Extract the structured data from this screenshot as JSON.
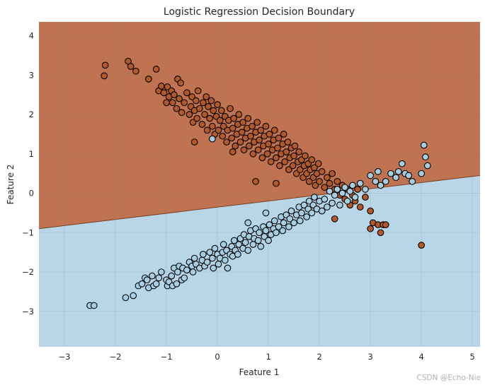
{
  "chart_data": {
    "type": "scatter",
    "title": "Logistic Regression Decision Boundary",
    "xlabel": "Feature 1",
    "ylabel": "Feature 2",
    "xlim": [
      -3.5,
      5.15
    ],
    "ylim": [
      -3.9,
      4.35
    ],
    "x_ticks": [
      -3,
      -2,
      -1,
      0,
      1,
      2,
      3,
      4,
      5
    ],
    "y_ticks": [
      -3,
      -2,
      -1,
      0,
      1,
      2,
      3,
      4
    ],
    "x_tick_labels": [
      "−3",
      "−2",
      "−1",
      "0",
      "1",
      "2",
      "3",
      "4",
      "5"
    ],
    "y_tick_labels": [
      "−3",
      "−2",
      "−1",
      "0",
      "1",
      "2",
      "3",
      "4"
    ],
    "grid": true,
    "decision_boundary": {
      "points": [
        [
          -3.5,
          -0.9
        ],
        [
          5.15,
          0.45
        ]
      ],
      "region_above_color": "#c07351",
      "region_below_color": "#b8d6e8"
    },
    "class_colors": {
      "class_0": "#a6cee3",
      "class_1": "#b15928"
    },
    "class_0_points": [
      [
        -2.5,
        -2.85
      ],
      [
        -2.42,
        -2.85
      ],
      [
        -1.8,
        -2.65
      ],
      [
        -1.65,
        -2.6
      ],
      [
        -1.55,
        -2.35
      ],
      [
        -1.48,
        -2.3
      ],
      [
        -1.42,
        -2.15
      ],
      [
        -1.38,
        -2.2
      ],
      [
        -1.35,
        -2.4
      ],
      [
        -1.28,
        -2.1
      ],
      [
        -1.25,
        -2.35
      ],
      [
        -1.2,
        -2.3
      ],
      [
        -1.15,
        -2.15
      ],
      [
        -1.1,
        -2.0
      ],
      [
        -1.0,
        -2.2
      ],
      [
        -0.98,
        -2.35
      ],
      [
        -0.95,
        -2.25
      ],
      [
        -0.9,
        -2.1
      ],
      [
        -0.88,
        -2.35
      ],
      [
        -0.85,
        -1.9
      ],
      [
        -0.8,
        -2.3
      ],
      [
        -0.78,
        -2.0
      ],
      [
        -0.75,
        -1.85
      ],
      [
        -0.7,
        -2.2
      ],
      [
        -0.68,
        -1.9
      ],
      [
        -0.65,
        -2.15
      ],
      [
        -0.6,
        -1.95
      ],
      [
        -0.55,
        -1.75
      ],
      [
        -0.5,
        -1.85
      ],
      [
        -0.48,
        -2.0
      ],
      [
        -0.45,
        -1.65
      ],
      [
        -0.42,
        -1.8
      ],
      [
        -0.35,
        -1.9
      ],
      [
        -0.3,
        -1.7
      ],
      [
        -0.28,
        -1.55
      ],
      [
        -0.25,
        -1.85
      ],
      [
        -0.2,
        -1.75
      ],
      [
        -0.15,
        -1.5
      ],
      [
        -0.1,
        -1.65
      ],
      [
        -0.08,
        -1.9
      ],
      [
        -0.05,
        -1.4
      ],
      [
        0.0,
        -1.55
      ],
      [
        0.02,
        -1.8
      ],
      [
        0.05,
        -1.65
      ],
      [
        0.1,
        -1.5
      ],
      [
        0.12,
        -1.3
      ],
      [
        0.15,
        -1.7
      ],
      [
        0.18,
        -1.45
      ],
      [
        0.2,
        -1.9
      ],
      [
        0.25,
        -1.55
      ],
      [
        0.28,
        -1.35
      ],
      [
        0.3,
        -1.6
      ],
      [
        0.33,
        -1.2
      ],
      [
        0.35,
        -1.45
      ],
      [
        0.4,
        -1.55
      ],
      [
        0.42,
        -1.3
      ],
      [
        0.45,
        -1.15
      ],
      [
        0.5,
        -1.4
      ],
      [
        0.52,
        -1.05
      ],
      [
        0.55,
        -1.25
      ],
      [
        0.6,
        -1.45
      ],
      [
        0.62,
        -1.1
      ],
      [
        0.65,
        -0.95
      ],
      [
        0.7,
        -1.3
      ],
      [
        0.72,
        -1.15
      ],
      [
        0.75,
        -0.9
      ],
      [
        0.8,
        -1.2
      ],
      [
        0.82,
        -1.0
      ],
      [
        0.85,
        -1.35
      ],
      [
        0.9,
        -0.85
      ],
      [
        0.92,
        -1.1
      ],
      [
        0.95,
        -0.95
      ],
      [
        1.0,
        -1.2
      ],
      [
        1.02,
        -0.8
      ],
      [
        1.05,
        -1.05
      ],
      [
        1.1,
        -0.9
      ],
      [
        1.12,
        -0.7
      ],
      [
        1.15,
        -1.0
      ],
      [
        1.2,
        -0.85
      ],
      [
        1.25,
        -0.6
      ],
      [
        1.28,
        -0.95
      ],
      [
        1.3,
        -0.75
      ],
      [
        1.35,
        -0.55
      ],
      [
        1.4,
        -0.85
      ],
      [
        1.42,
        -0.65
      ],
      [
        1.45,
        -0.45
      ],
      [
        1.5,
        -0.75
      ],
      [
        1.55,
        -0.55
      ],
      [
        1.6,
        -0.35
      ],
      [
        1.62,
        -0.7
      ],
      [
        1.65,
        -0.5
      ],
      [
        1.7,
        -0.3
      ],
      [
        1.75,
        -0.6
      ],
      [
        1.78,
        -0.4
      ],
      [
        1.8,
        -0.2
      ],
      [
        1.85,
        -0.5
      ],
      [
        1.88,
        -0.3
      ],
      [
        1.9,
        -0.1
      ],
      [
        1.95,
        -0.4
      ],
      [
        2.0,
        -0.2
      ],
      [
        2.05,
        -0.45
      ],
      [
        2.1,
        -0.15
      ],
      [
        2.15,
        -0.35
      ],
      [
        2.2,
        0.05
      ],
      [
        2.25,
        -0.25
      ],
      [
        2.3,
        -0.05
      ],
      [
        2.35,
        0.1
      ],
      [
        2.4,
        -0.3
      ],
      [
        2.45,
        0.0
      ],
      [
        2.5,
        0.15
      ],
      [
        2.55,
        -0.2
      ],
      [
        2.6,
        0.05
      ],
      [
        2.65,
        0.2
      ],
      [
        2.7,
        -0.1
      ],
      [
        2.8,
        0.25
      ],
      [
        2.9,
        0.1
      ],
      [
        3.0,
        0.45
      ],
      [
        3.1,
        0.3
      ],
      [
        3.15,
        0.55
      ],
      [
        3.2,
        0.2
      ],
      [
        3.3,
        0.3
      ],
      [
        3.4,
        0.5
      ],
      [
        3.5,
        0.4
      ],
      [
        3.55,
        0.55
      ],
      [
        3.62,
        0.75
      ],
      [
        3.68,
        0.5
      ],
      [
        3.75,
        0.45
      ],
      [
        3.82,
        0.3
      ],
      [
        4.0,
        0.5
      ],
      [
        4.05,
        1.22
      ],
      [
        4.08,
        0.92
      ],
      [
        4.12,
        0.7
      ],
      [
        -0.1,
        1.38
      ],
      [
        0.95,
        -0.5
      ],
      [
        0.6,
        -0.75
      ]
    ],
    "class_1_points": [
      [
        -2.2,
        3.25
      ],
      [
        -2.22,
        2.98
      ],
      [
        -1.75,
        3.35
      ],
      [
        -1.7,
        3.22
      ],
      [
        -1.6,
        3.1
      ],
      [
        -1.35,
        2.9
      ],
      [
        -1.2,
        3.15
      ],
      [
        -1.15,
        2.6
      ],
      [
        -1.1,
        2.72
      ],
      [
        -1.05,
        2.55
      ],
      [
        -1.0,
        2.3
      ],
      [
        -0.98,
        2.7
      ],
      [
        -0.95,
        2.45
      ],
      [
        -0.9,
        2.6
      ],
      [
        -0.88,
        2.3
      ],
      [
        -0.85,
        2.5
      ],
      [
        -0.8,
        2.15
      ],
      [
        -0.78,
        2.9
      ],
      [
        -0.75,
        2.4
      ],
      [
        -0.72,
        2.8
      ],
      [
        -0.7,
        2.05
      ],
      [
        -0.65,
        2.3
      ],
      [
        -0.6,
        2.55
      ],
      [
        -0.55,
        2.0
      ],
      [
        -0.52,
        2.2
      ],
      [
        -0.5,
        2.45
      ],
      [
        -0.48,
        1.8
      ],
      [
        -0.45,
        2.1
      ],
      [
        -0.42,
        2.35
      ],
      [
        -0.4,
        1.9
      ],
      [
        -0.38,
        2.6
      ],
      [
        -0.35,
        2.15
      ],
      [
        -0.3,
        1.75
      ],
      [
        -0.28,
        2.3
      ],
      [
        -0.25,
        2.0
      ],
      [
        -0.22,
        2.45
      ],
      [
        -0.2,
        1.6
      ],
      [
        -0.18,
        2.2
      ],
      [
        -0.15,
        1.9
      ],
      [
        -0.12,
        2.35
      ],
      [
        -0.1,
        1.7
      ],
      [
        -0.08,
        2.1
      ],
      [
        -0.05,
        1.5
      ],
      [
        -0.02,
        1.95
      ],
      [
        0.0,
        2.25
      ],
      [
        0.02,
        1.6
      ],
      [
        0.05,
        1.85
      ],
      [
        0.08,
        2.1
      ],
      [
        0.1,
        1.45
      ],
      [
        0.12,
        1.7
      ],
      [
        0.15,
        1.95
      ],
      [
        0.18,
        1.3
      ],
      [
        0.2,
        1.6
      ],
      [
        0.22,
        1.85
      ],
      [
        0.25,
        2.15
      ],
      [
        0.28,
        1.4
      ],
      [
        0.3,
        1.65
      ],
      [
        0.32,
        1.9
      ],
      [
        0.35,
        1.2
      ],
      [
        0.38,
        1.5
      ],
      [
        0.4,
        1.75
      ],
      [
        0.42,
        2.0
      ],
      [
        0.45,
        1.3
      ],
      [
        0.48,
        1.55
      ],
      [
        0.5,
        1.8
      ],
      [
        0.52,
        1.1
      ],
      [
        0.55,
        1.4
      ],
      [
        0.58,
        1.65
      ],
      [
        0.6,
        1.9
      ],
      [
        0.62,
        1.2
      ],
      [
        0.65,
        1.45
      ],
      [
        0.68,
        1.7
      ],
      [
        0.7,
        1.0
      ],
      [
        0.72,
        1.3
      ],
      [
        0.75,
        1.55
      ],
      [
        0.78,
        1.8
      ],
      [
        0.8,
        1.1
      ],
      [
        0.82,
        1.35
      ],
      [
        0.85,
        1.6
      ],
      [
        0.88,
        0.9
      ],
      [
        0.9,
        1.2
      ],
      [
        0.92,
        1.45
      ],
      [
        0.95,
        1.7
      ],
      [
        0.98,
        1.0
      ],
      [
        1.0,
        1.25
      ],
      [
        1.02,
        1.5
      ],
      [
        1.05,
        0.8
      ],
      [
        1.08,
        1.1
      ],
      [
        1.1,
        1.35
      ],
      [
        1.12,
        1.6
      ],
      [
        1.15,
        0.9
      ],
      [
        1.18,
        1.15
      ],
      [
        1.2,
        1.4
      ],
      [
        1.22,
        0.7
      ],
      [
        1.25,
        1.0
      ],
      [
        1.28,
        1.25
      ],
      [
        1.3,
        1.5
      ],
      [
        1.32,
        0.8
      ],
      [
        1.35,
        1.05
      ],
      [
        1.38,
        1.3
      ],
      [
        1.4,
        0.6
      ],
      [
        1.42,
        0.9
      ],
      [
        1.45,
        1.15
      ],
      [
        1.48,
        0.7
      ],
      [
        1.5,
        0.95
      ],
      [
        1.52,
        1.2
      ],
      [
        1.55,
        0.5
      ],
      [
        1.58,
        0.8
      ],
      [
        1.6,
        1.05
      ],
      [
        1.62,
        0.6
      ],
      [
        1.65,
        0.85
      ],
      [
        1.68,
        0.4
      ],
      [
        1.7,
        0.7
      ],
      [
        1.72,
        0.95
      ],
      [
        1.75,
        0.5
      ],
      [
        1.78,
        0.75
      ],
      [
        1.8,
        0.3
      ],
      [
        1.82,
        0.6
      ],
      [
        1.85,
        0.85
      ],
      [
        1.88,
        0.4
      ],
      [
        1.9,
        0.65
      ],
      [
        1.92,
        0.2
      ],
      [
        1.95,
        0.5
      ],
      [
        1.98,
        0.75
      ],
      [
        2.0,
        0.3
      ],
      [
        2.05,
        0.55
      ],
      [
        2.1,
        0.15
      ],
      [
        2.15,
        0.4
      ],
      [
        2.2,
        0.25
      ],
      [
        2.25,
        0.5
      ],
      [
        2.3,
        0.1
      ],
      [
        2.35,
        0.3
      ],
      [
        2.4,
        -0.05
      ],
      [
        2.45,
        0.2
      ],
      [
        2.5,
        -0.15
      ],
      [
        2.55,
        0.1
      ],
      [
        2.6,
        -0.3
      ],
      [
        2.65,
        -0.05
      ],
      [
        2.7,
        -0.2
      ],
      [
        2.75,
        0.1
      ],
      [
        2.8,
        -0.35
      ],
      [
        2.9,
        -0.1
      ],
      [
        3.0,
        -0.45
      ],
      [
        3.05,
        -0.75
      ],
      [
        3.0,
        -0.9
      ],
      [
        3.15,
        -0.8
      ],
      [
        3.2,
        -1.0
      ],
      [
        3.25,
        -0.8
      ],
      [
        3.3,
        -0.8
      ],
      [
        4.0,
        -1.32
      ],
      [
        2.3,
        -0.65
      ],
      [
        0.3,
        1.05
      ],
      [
        0.75,
        0.3
      ],
      [
        1.15,
        0.25
      ],
      [
        -0.45,
        1.3
      ]
    ],
    "watermark": "CSDN @Echo-Nie"
  }
}
